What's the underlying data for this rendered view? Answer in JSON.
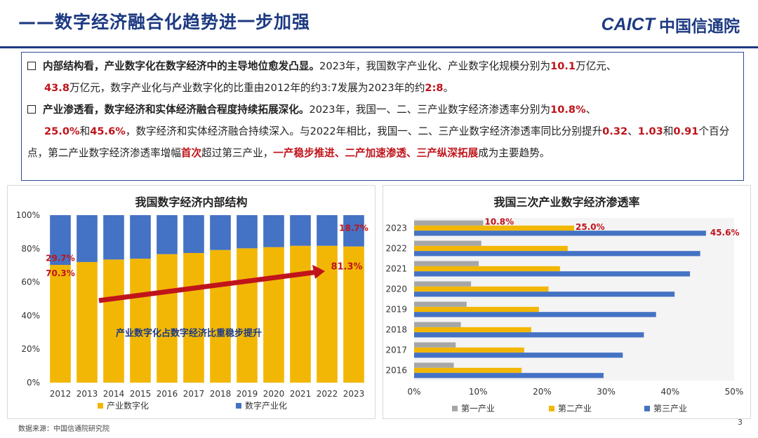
{
  "header": {
    "title": "——数字经济融合化趋势进一步加强",
    "logo_en": "CAICT",
    "logo_cn": "中国信通院"
  },
  "paragraphs": {
    "p1": {
      "lead": "内部结构看，产业数字化在数字经济中的主导地位愈发凸显。",
      "t1": "2023年，我国数字产业化、产业数字化规模分别为",
      "v1": "10.1",
      "t2": "万亿元、",
      "v2": "43.8",
      "t3": "万亿元，数字产业化与产业数字化的比重由2012年的约3:7发展为2023年的约",
      "v3": "2:8",
      "t4": "。"
    },
    "p2": {
      "lead": "产业渗透看，数字经济和实体经济融合程度持续拓展深化。",
      "t1": "2023年，我国一、二、三产业数字经济渗透率分别为",
      "v1": "10.8%",
      "t2": "、",
      "v2": "25.0%",
      "t3": "和",
      "v3": "45.6%",
      "t4": "，数字经济和实体经济融合持续深入。与2022年相比，我国一、二、三产业数字经济渗透率同比分别提升",
      "v4": "0.32",
      "t5": "、",
      "v5": "1.03",
      "t6": "和",
      "v6": "0.91",
      "t7": "个百分点，第二产业数字经济渗透率增幅",
      "v7": "首次",
      "t8": "超过第三产业，",
      "v8": "一产稳步推进、二产加速渗透、三产纵深拓展",
      "t9": "成为主要趋势。"
    }
  },
  "chart_data": [
    {
      "type": "bar",
      "stacked": true,
      "title": "我国数字经济内部结构",
      "categories": [
        "2012",
        "2013",
        "2014",
        "2015",
        "2016",
        "2017",
        "2018",
        "2019",
        "2020",
        "2021",
        "2022",
        "2023"
      ],
      "series": [
        {
          "name": "产业数字化",
          "color": "#f2b705",
          "values": [
            70.3,
            72.0,
            73.5,
            74.0,
            76.7,
            77.4,
            79.2,
            80.2,
            80.9,
            81.7,
            81.7,
            81.3
          ]
        },
        {
          "name": "数字产业化",
          "color": "#4472c4",
          "values": [
            29.7,
            28.0,
            26.5,
            26.0,
            23.3,
            22.6,
            20.8,
            19.8,
            19.1,
            18.3,
            18.3,
            18.7
          ]
        }
      ],
      "ylim": [
        0,
        100
      ],
      "yticks": [
        "0%",
        "20%",
        "40%",
        "60%",
        "80%",
        "100%"
      ],
      "data_labels": {
        "first_top": "29.7%",
        "first_bottom": "70.3%",
        "last_top": "18.7%",
        "last_bottom": "81.3%"
      },
      "annotation": "产业数字化占数字经济比重稳步提升"
    },
    {
      "type": "bar",
      "orientation": "horizontal",
      "title": "我国三次产业数字经济渗透率",
      "categories": [
        "2023",
        "2022",
        "2021",
        "2020",
        "2019",
        "2018",
        "2017",
        "2016"
      ],
      "series": [
        {
          "name": "第一产业",
          "color": "#a6a6a6",
          "values": [
            10.8,
            10.5,
            10.1,
            8.9,
            8.2,
            7.3,
            6.5,
            6.2
          ]
        },
        {
          "name": "第二产业",
          "color": "#f2b705",
          "values": [
            25.0,
            24.0,
            22.8,
            21.0,
            19.5,
            18.3,
            17.2,
            16.8
          ]
        },
        {
          "name": "第三产业",
          "color": "#4472c4",
          "values": [
            45.6,
            44.7,
            43.1,
            40.7,
            37.8,
            35.9,
            32.6,
            29.6
          ]
        }
      ],
      "xlim": [
        0,
        50
      ],
      "xticks": [
        "0%",
        "10%",
        "20%",
        "30%",
        "40%",
        "50%"
      ],
      "data_labels": {
        "s1": "10.8%",
        "s2": "25.0%",
        "s3": "45.6%"
      }
    }
  ],
  "footer": {
    "source": "数据来源：中国信通院研究院",
    "page": "3"
  }
}
